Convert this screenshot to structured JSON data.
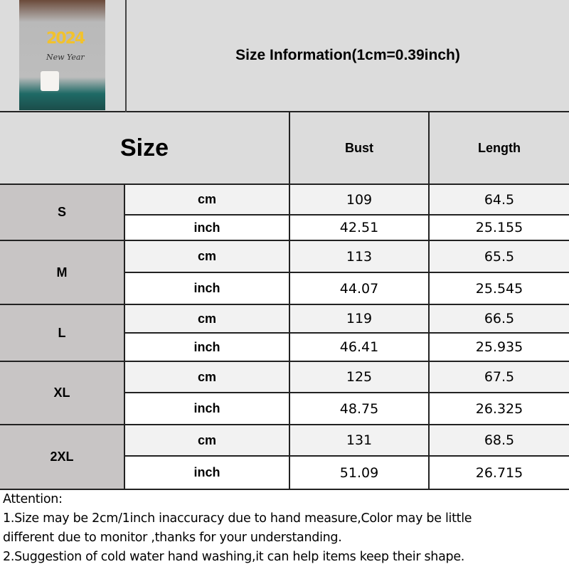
{
  "title": "Size Information(1cm=0.39inch)",
  "product_image": {
    "print_text": "2024 New Year"
  },
  "table": {
    "size_header": "Size",
    "columns": [
      "Bust",
      "Length"
    ],
    "rows": [
      {
        "size": "S",
        "cm": {
          "unit": "cm",
          "bust": "109",
          "length": "64.5"
        },
        "inch": {
          "unit": "inch",
          "bust": "42.51",
          "length": "25.155"
        }
      },
      {
        "size": "M",
        "cm": {
          "unit": "cm",
          "bust": "113",
          "length": "65.5"
        },
        "inch": {
          "unit": "inch",
          "bust": "44.07",
          "length": "25.545"
        }
      },
      {
        "size": "L",
        "cm": {
          "unit": "cm",
          "bust": "119",
          "length": "66.5"
        },
        "inch": {
          "unit": "inch",
          "bust": "46.41",
          "length": "25.935"
        }
      },
      {
        "size": "XL",
        "cm": {
          "unit": "cm",
          "bust": "125",
          "length": "67.5"
        },
        "inch": {
          "unit": "inch",
          "bust": "48.75",
          "length": "26.325"
        }
      },
      {
        "size": "2XL",
        "cm": {
          "unit": "cm",
          "bust": "131",
          "length": "68.5"
        },
        "inch": {
          "unit": "inch",
          "bust": "51.09",
          "length": "26.715"
        }
      }
    ]
  },
  "notes": [
    "Attention:",
    "1.Size may be 2cm/1inch inaccuracy due to hand measure,Color may be little",
    "different due to monitor ,thanks for your understanding.",
    "2.Suggestion of cold water hand washing,it can help items keep their shape."
  ]
}
